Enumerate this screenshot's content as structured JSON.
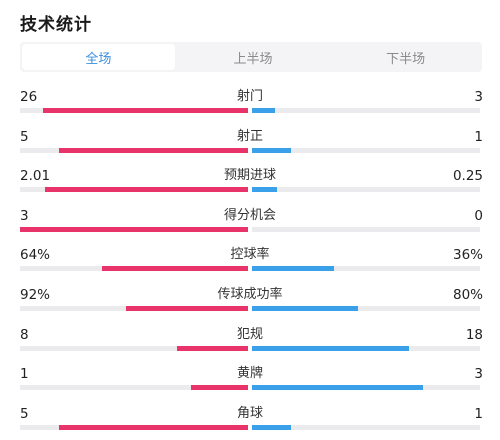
{
  "header": {
    "title": "技术统计"
  },
  "tabs": [
    {
      "label": "全场",
      "active": true
    },
    {
      "label": "上半场",
      "active": false
    },
    {
      "label": "下半场",
      "active": false
    }
  ],
  "colors": {
    "home": "#e8336b",
    "away": "#3ba0ea",
    "track": "#ebebee",
    "active_tab": "#3a8fe0"
  },
  "stats": [
    {
      "label": "射门",
      "home": "26",
      "away": "3",
      "home_share": 0.9,
      "away_share": 0.1
    },
    {
      "label": "射正",
      "home": "5",
      "away": "1",
      "home_share": 0.83,
      "away_share": 0.17
    },
    {
      "label": "预期进球",
      "home": "2.01",
      "away": "0.25",
      "home_share": 0.89,
      "away_share": 0.11
    },
    {
      "label": "得分机会",
      "home": "3",
      "away": "0",
      "home_share": 1.0,
      "away_share": 0.0
    },
    {
      "label": "控球率",
      "home": "64%",
      "away": "36%",
      "home_share": 0.64,
      "away_share": 0.36
    },
    {
      "label": "传球成功率",
      "home": "92%",
      "away": "80%",
      "home_share": 0.535,
      "away_share": 0.465
    },
    {
      "label": "犯规",
      "home": "8",
      "away": "18",
      "home_share": 0.31,
      "away_share": 0.69
    },
    {
      "label": "黄牌",
      "home": "1",
      "away": "3",
      "home_share": 0.25,
      "away_share": 0.75
    },
    {
      "label": "角球",
      "home": "5",
      "away": "1",
      "home_share": 0.83,
      "away_share": 0.17
    }
  ]
}
